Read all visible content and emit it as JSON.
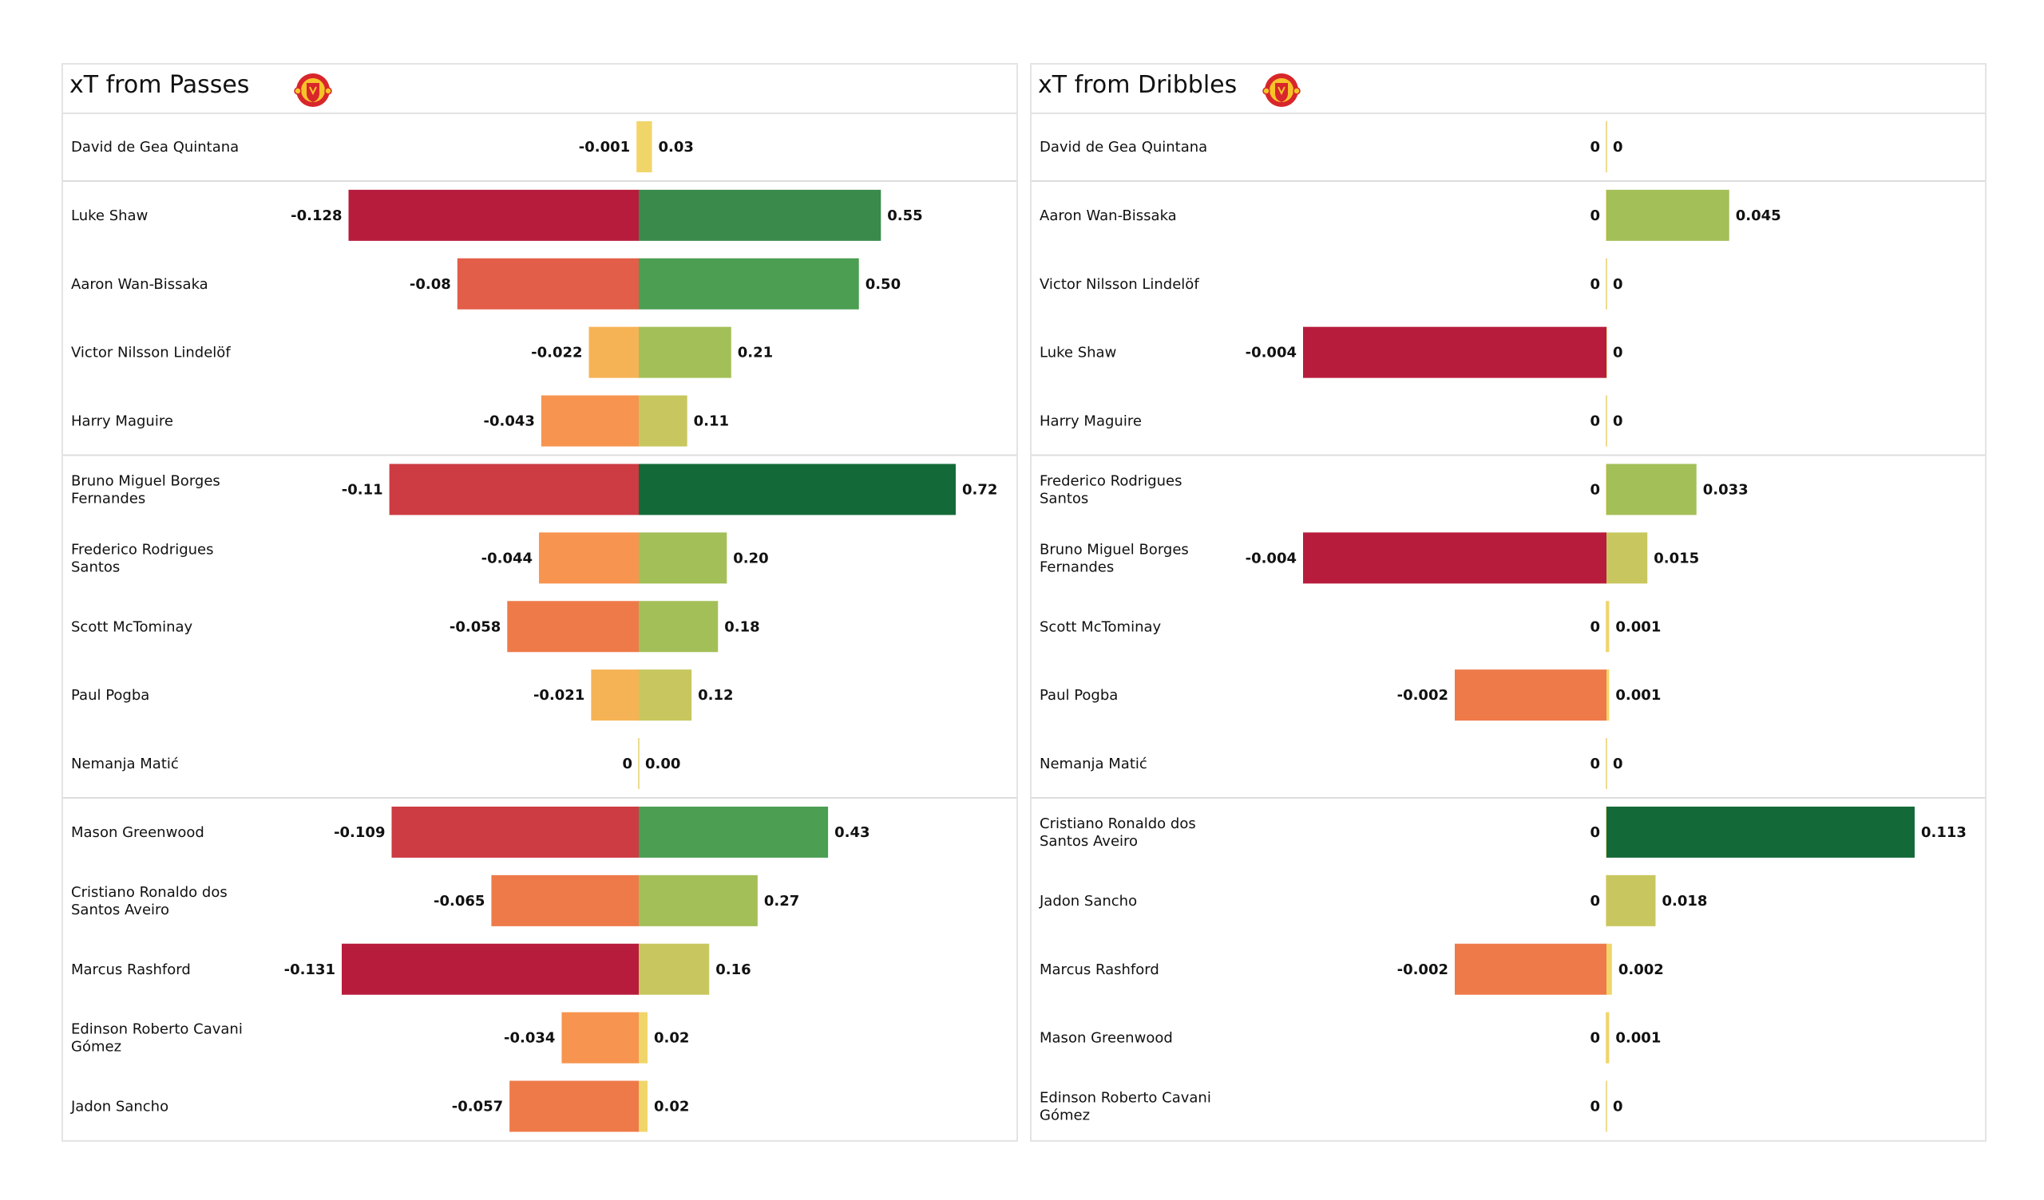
{
  "chart_data": [
    {
      "type": "bar",
      "orientation": "horizontal-diverging",
      "title": "xT from Passes",
      "logo": "manchester-united-crest",
      "grid": false,
      "sections": [
        [
          0
        ],
        [
          1,
          2,
          3,
          4
        ],
        [
          5,
          6,
          7,
          8,
          9
        ],
        [
          10,
          11,
          12,
          13,
          14
        ]
      ],
      "categories": [
        [
          "David de Gea Quintana"
        ],
        [
          "Luke Shaw"
        ],
        [
          "Aaron Wan-Bissaka"
        ],
        [
          "Victor Nilsson Lindelöf"
        ],
        [
          "Harry  Maguire"
        ],
        [
          "Bruno Miguel Borges",
          "Fernandes"
        ],
        [
          "Frederico Rodrigues",
          "Santos"
        ],
        [
          "Scott McTominay"
        ],
        [
          "Paul Pogba"
        ],
        [
          "Nemanja Matić"
        ],
        [
          "Mason Greenwood"
        ],
        [
          "Cristiano Ronaldo dos",
          "Santos Aveiro"
        ],
        [
          "Marcus Rashford"
        ],
        [
          "Edinson Roberto Cavani",
          "Gómez"
        ],
        [
          "Jadon Sancho"
        ]
      ],
      "series": [
        {
          "name": "negative xT",
          "values": [
            -0.001,
            -0.128,
            -0.08,
            -0.022,
            -0.043,
            -0.11,
            -0.044,
            -0.058,
            -0.021,
            0,
            -0.109,
            -0.065,
            -0.131,
            -0.034,
            -0.057
          ],
          "labels": [
            "-0.001",
            "-0.128",
            "-0.08",
            "-0.022",
            "-0.043",
            "-0.11",
            "-0.044",
            "-0.058",
            "-0.021",
            "0",
            "-0.109",
            "-0.065",
            "-0.131",
            "-0.034",
            "-0.057"
          ]
        },
        {
          "name": "positive xT",
          "values": [
            0.03,
            0.55,
            0.5,
            0.21,
            0.11,
            0.72,
            0.2,
            0.18,
            0.12,
            0.0,
            0.43,
            0.27,
            0.16,
            0.02,
            0.02
          ],
          "labels": [
            "0.03",
            "0.55",
            "0.50",
            "0.21",
            "0.11",
            "0.72",
            "0.20",
            "0.18",
            "0.12",
            "0.00",
            "0.43",
            "0.27",
            "0.16",
            "0.02",
            "0.02"
          ]
        }
      ],
      "neg_range": [
        -0.131,
        0
      ],
      "pos_range": [
        0,
        0.72
      ]
    },
    {
      "type": "bar",
      "orientation": "horizontal-diverging",
      "title": "xT from Dribbles",
      "logo": "manchester-united-crest",
      "grid": false,
      "sections": [
        [
          0
        ],
        [
          1,
          2,
          3,
          4
        ],
        [
          5,
          6,
          7,
          8,
          9
        ],
        [
          10,
          11,
          12,
          13,
          14
        ]
      ],
      "categories": [
        [
          "David de Gea Quintana"
        ],
        [
          "Aaron Wan-Bissaka"
        ],
        [
          "Victor Nilsson Lindelöf"
        ],
        [
          "Luke Shaw"
        ],
        [
          "Harry  Maguire"
        ],
        [
          "Frederico Rodrigues",
          "Santos"
        ],
        [
          "Bruno Miguel Borges",
          "Fernandes"
        ],
        [
          "Scott McTominay"
        ],
        [
          "Paul Pogba"
        ],
        [
          "Nemanja Matić"
        ],
        [
          "Cristiano Ronaldo dos",
          "Santos Aveiro"
        ],
        [
          "Jadon Sancho"
        ],
        [
          "Marcus Rashford"
        ],
        [
          "Mason Greenwood"
        ],
        [
          "Edinson Roberto Cavani",
          "Gómez"
        ]
      ],
      "series": [
        {
          "name": "negative xT",
          "values": [
            0,
            0,
            0,
            -0.004,
            0,
            0,
            -0.004,
            0,
            -0.002,
            0,
            0,
            0,
            -0.002,
            0,
            0
          ],
          "labels": [
            "0",
            "0",
            "0",
            "-0.004",
            "0",
            "0",
            "-0.004",
            "0",
            "-0.002",
            "0",
            "0",
            "0",
            "-0.002",
            "0",
            "0"
          ]
        },
        {
          "name": "positive xT",
          "values": [
            0,
            0.045,
            0,
            0,
            0,
            0.033,
            0.015,
            0.001,
            0.001,
            0,
            0.113,
            0.018,
            0.002,
            0.001,
            0
          ],
          "labels": [
            "0",
            "0.045",
            "0",
            "0",
            "0",
            "0.033",
            "0.015",
            "0.001",
            "0.001",
            "0",
            "0.113",
            "0.018",
            "0.002",
            "0.001",
            "0"
          ]
        }
      ],
      "neg_range": [
        -0.004,
        0
      ],
      "pos_range": [
        0,
        0.113
      ]
    }
  ],
  "colors": {
    "negative_scale": [
      "#f7d56a",
      "#f6b355",
      "#f7944f",
      "#ee7a4a",
      "#e25e48",
      "#cd3b43",
      "#b81c3d"
    ],
    "positive_scale": [
      "#f0d56a",
      "#c8c75f",
      "#a3bf58",
      "#7fb35a",
      "#4b9e52",
      "#3a8a4c",
      "#136a38"
    ],
    "zero_line": "#e8cf6a"
  }
}
